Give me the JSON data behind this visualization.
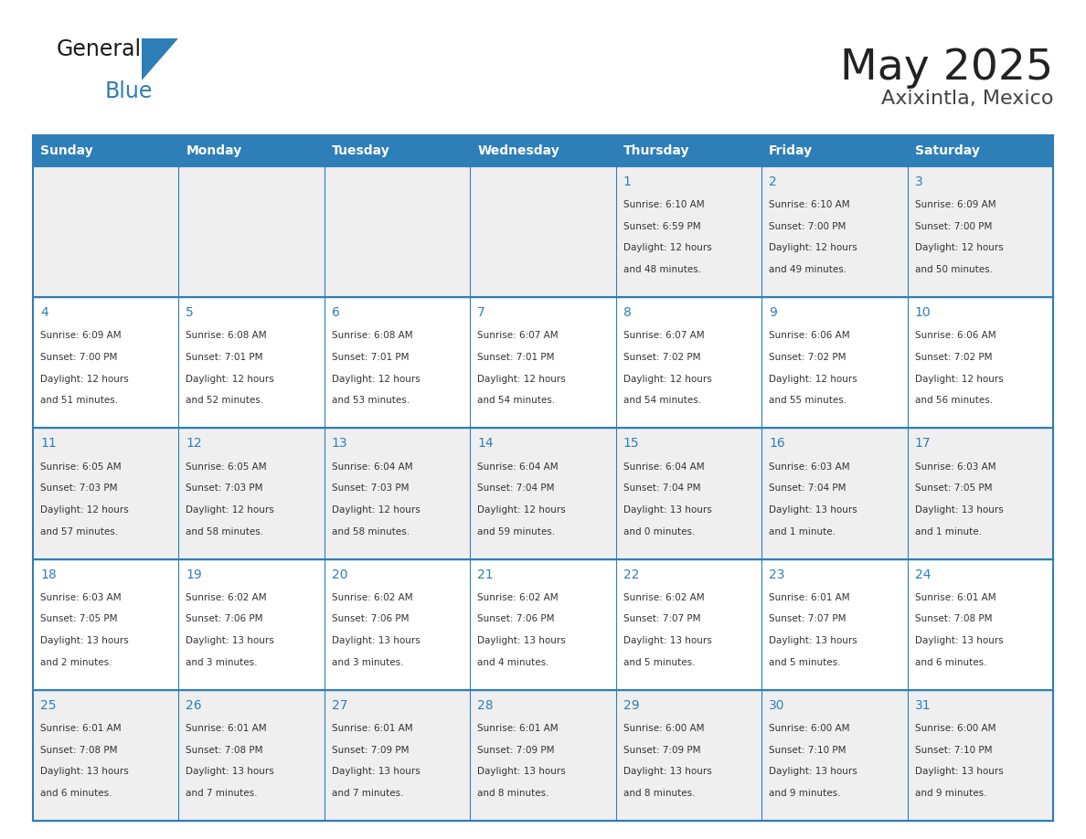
{
  "title": "May 2025",
  "subtitle": "Axixintla, Mexico",
  "days_of_week": [
    "Sunday",
    "Monday",
    "Tuesday",
    "Wednesday",
    "Thursday",
    "Friday",
    "Saturday"
  ],
  "header_bg": "#2E7EB8",
  "header_text": "#FFFFFF",
  "cell_bg_odd": "#EFEFEF",
  "cell_bg_even": "#FFFFFF",
  "cell_text": "#333333",
  "border_color": "#2E7EB8",
  "title_color": "#222222",
  "subtitle_color": "#444444",
  "blue_color": "#2E7EB8",
  "calendar_data": [
    [
      {
        "day": "",
        "lines": []
      },
      {
        "day": "",
        "lines": []
      },
      {
        "day": "",
        "lines": []
      },
      {
        "day": "",
        "lines": []
      },
      {
        "day": "1",
        "lines": [
          "Sunrise: 6:10 AM",
          "Sunset: 6:59 PM",
          "Daylight: 12 hours",
          "and 48 minutes."
        ]
      },
      {
        "day": "2",
        "lines": [
          "Sunrise: 6:10 AM",
          "Sunset: 7:00 PM",
          "Daylight: 12 hours",
          "and 49 minutes."
        ]
      },
      {
        "day": "3",
        "lines": [
          "Sunrise: 6:09 AM",
          "Sunset: 7:00 PM",
          "Daylight: 12 hours",
          "and 50 minutes."
        ]
      }
    ],
    [
      {
        "day": "4",
        "lines": [
          "Sunrise: 6:09 AM",
          "Sunset: 7:00 PM",
          "Daylight: 12 hours",
          "and 51 minutes."
        ]
      },
      {
        "day": "5",
        "lines": [
          "Sunrise: 6:08 AM",
          "Sunset: 7:01 PM",
          "Daylight: 12 hours",
          "and 52 minutes."
        ]
      },
      {
        "day": "6",
        "lines": [
          "Sunrise: 6:08 AM",
          "Sunset: 7:01 PM",
          "Daylight: 12 hours",
          "and 53 minutes."
        ]
      },
      {
        "day": "7",
        "lines": [
          "Sunrise: 6:07 AM",
          "Sunset: 7:01 PM",
          "Daylight: 12 hours",
          "and 54 minutes."
        ]
      },
      {
        "day": "8",
        "lines": [
          "Sunrise: 6:07 AM",
          "Sunset: 7:02 PM",
          "Daylight: 12 hours",
          "and 54 minutes."
        ]
      },
      {
        "day": "9",
        "lines": [
          "Sunrise: 6:06 AM",
          "Sunset: 7:02 PM",
          "Daylight: 12 hours",
          "and 55 minutes."
        ]
      },
      {
        "day": "10",
        "lines": [
          "Sunrise: 6:06 AM",
          "Sunset: 7:02 PM",
          "Daylight: 12 hours",
          "and 56 minutes."
        ]
      }
    ],
    [
      {
        "day": "11",
        "lines": [
          "Sunrise: 6:05 AM",
          "Sunset: 7:03 PM",
          "Daylight: 12 hours",
          "and 57 minutes."
        ]
      },
      {
        "day": "12",
        "lines": [
          "Sunrise: 6:05 AM",
          "Sunset: 7:03 PM",
          "Daylight: 12 hours",
          "and 58 minutes."
        ]
      },
      {
        "day": "13",
        "lines": [
          "Sunrise: 6:04 AM",
          "Sunset: 7:03 PM",
          "Daylight: 12 hours",
          "and 58 minutes."
        ]
      },
      {
        "day": "14",
        "lines": [
          "Sunrise: 6:04 AM",
          "Sunset: 7:04 PM",
          "Daylight: 12 hours",
          "and 59 minutes."
        ]
      },
      {
        "day": "15",
        "lines": [
          "Sunrise: 6:04 AM",
          "Sunset: 7:04 PM",
          "Daylight: 13 hours",
          "and 0 minutes."
        ]
      },
      {
        "day": "16",
        "lines": [
          "Sunrise: 6:03 AM",
          "Sunset: 7:04 PM",
          "Daylight: 13 hours",
          "and 1 minute."
        ]
      },
      {
        "day": "17",
        "lines": [
          "Sunrise: 6:03 AM",
          "Sunset: 7:05 PM",
          "Daylight: 13 hours",
          "and 1 minute."
        ]
      }
    ],
    [
      {
        "day": "18",
        "lines": [
          "Sunrise: 6:03 AM",
          "Sunset: 7:05 PM",
          "Daylight: 13 hours",
          "and 2 minutes."
        ]
      },
      {
        "day": "19",
        "lines": [
          "Sunrise: 6:02 AM",
          "Sunset: 7:06 PM",
          "Daylight: 13 hours",
          "and 3 minutes."
        ]
      },
      {
        "day": "20",
        "lines": [
          "Sunrise: 6:02 AM",
          "Sunset: 7:06 PM",
          "Daylight: 13 hours",
          "and 3 minutes."
        ]
      },
      {
        "day": "21",
        "lines": [
          "Sunrise: 6:02 AM",
          "Sunset: 7:06 PM",
          "Daylight: 13 hours",
          "and 4 minutes."
        ]
      },
      {
        "day": "22",
        "lines": [
          "Sunrise: 6:02 AM",
          "Sunset: 7:07 PM",
          "Daylight: 13 hours",
          "and 5 minutes."
        ]
      },
      {
        "day": "23",
        "lines": [
          "Sunrise: 6:01 AM",
          "Sunset: 7:07 PM",
          "Daylight: 13 hours",
          "and 5 minutes."
        ]
      },
      {
        "day": "24",
        "lines": [
          "Sunrise: 6:01 AM",
          "Sunset: 7:08 PM",
          "Daylight: 13 hours",
          "and 6 minutes."
        ]
      }
    ],
    [
      {
        "day": "25",
        "lines": [
          "Sunrise: 6:01 AM",
          "Sunset: 7:08 PM",
          "Daylight: 13 hours",
          "and 6 minutes."
        ]
      },
      {
        "day": "26",
        "lines": [
          "Sunrise: 6:01 AM",
          "Sunset: 7:08 PM",
          "Daylight: 13 hours",
          "and 7 minutes."
        ]
      },
      {
        "day": "27",
        "lines": [
          "Sunrise: 6:01 AM",
          "Sunset: 7:09 PM",
          "Daylight: 13 hours",
          "and 7 minutes."
        ]
      },
      {
        "day": "28",
        "lines": [
          "Sunrise: 6:01 AM",
          "Sunset: 7:09 PM",
          "Daylight: 13 hours",
          "and 8 minutes."
        ]
      },
      {
        "day": "29",
        "lines": [
          "Sunrise: 6:00 AM",
          "Sunset: 7:09 PM",
          "Daylight: 13 hours",
          "and 8 minutes."
        ]
      },
      {
        "day": "30",
        "lines": [
          "Sunrise: 6:00 AM",
          "Sunset: 7:10 PM",
          "Daylight: 13 hours",
          "and 9 minutes."
        ]
      },
      {
        "day": "31",
        "lines": [
          "Sunrise: 6:00 AM",
          "Sunset: 7:10 PM",
          "Daylight: 13 hours",
          "and 9 minutes."
        ]
      }
    ]
  ]
}
